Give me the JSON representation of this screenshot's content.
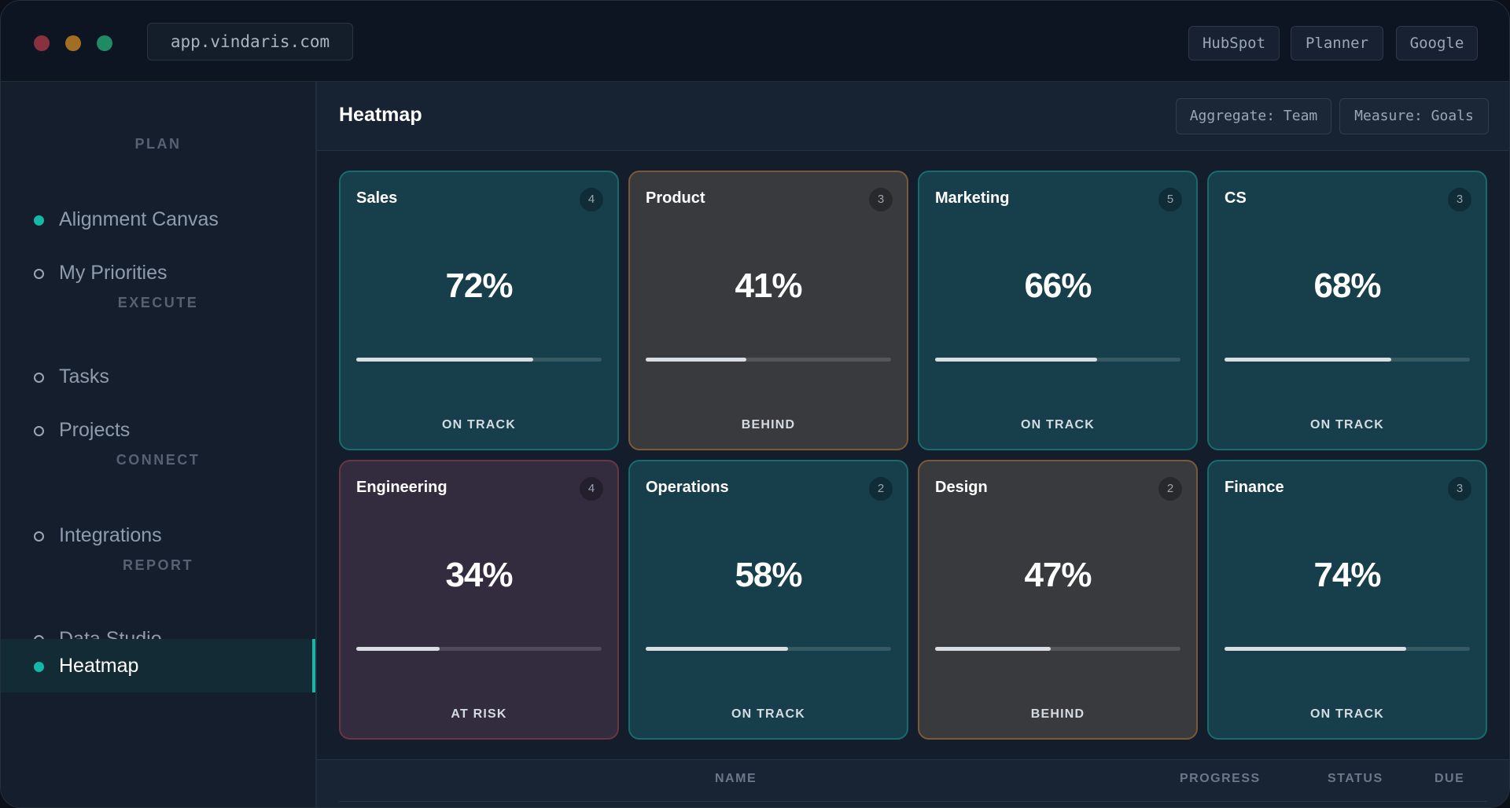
{
  "titlebar": {
    "url": "app.vindaris.com",
    "links": [
      "HubSpot",
      "Planner",
      "Google"
    ]
  },
  "sidebar": {
    "sections": [
      {
        "label": "PLAN",
        "items": [
          {
            "label": "Alignment Canvas",
            "bullet": "filled"
          },
          {
            "label": "My Priorities",
            "bullet": "outline"
          }
        ]
      },
      {
        "label": "EXECUTE",
        "items": [
          {
            "label": "Tasks",
            "bullet": "outline"
          },
          {
            "label": "Projects",
            "bullet": "outline"
          }
        ]
      },
      {
        "label": "CONNECT",
        "items": [
          {
            "label": "Integrations",
            "bullet": "outline"
          }
        ]
      },
      {
        "label": "REPORT",
        "items": [
          {
            "label": "Data Studio",
            "bullet": "outline"
          },
          {
            "label": "Heatmap",
            "bullet": "filled",
            "active": true
          }
        ]
      }
    ]
  },
  "main": {
    "title": "Heatmap",
    "chips": {
      "aggregate": "Aggregate: Team",
      "measure": "Measure: Goals"
    },
    "cards": [
      {
        "team": "Sales",
        "count": "4",
        "percent": "72%",
        "progress": 0.72,
        "status": "ON TRACK"
      },
      {
        "team": "Product",
        "count": "3",
        "percent": "41%",
        "progress": 0.41,
        "status": "BEHIND"
      },
      {
        "team": "Marketing",
        "count": "5",
        "percent": "66%",
        "progress": 0.66,
        "status": "ON TRACK"
      },
      {
        "team": "CS",
        "count": "3",
        "percent": "68%",
        "progress": 0.68,
        "status": "ON TRACK"
      },
      {
        "team": "Engineering",
        "count": "4",
        "percent": "34%",
        "progress": 0.34,
        "status": "AT RISK"
      },
      {
        "team": "Operations",
        "count": "2",
        "percent": "58%",
        "progress": 0.58,
        "status": "ON TRACK"
      },
      {
        "team": "Design",
        "count": "2",
        "percent": "47%",
        "progress": 0.47,
        "status": "BEHIND"
      },
      {
        "team": "Finance",
        "count": "3",
        "percent": "74%",
        "progress": 0.74,
        "status": "ON TRACK"
      }
    ],
    "table": {
      "columns": {
        "name": "NAME",
        "progress": "PROGRESS",
        "status": "STATUS",
        "due": "DUE"
      }
    }
  },
  "colors": {
    "accent": "#14b8a6",
    "on_track": "#173e4b",
    "behind": "#383a3d",
    "at_risk": "#332c3e"
  }
}
